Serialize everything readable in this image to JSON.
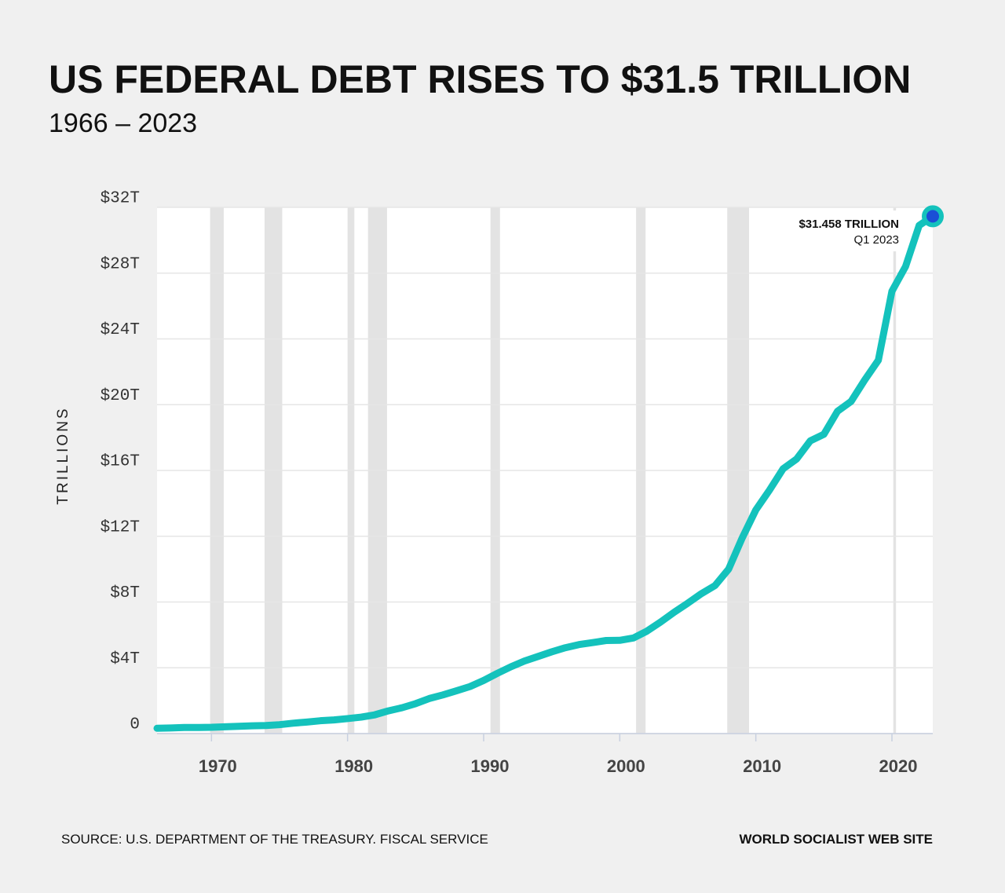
{
  "chart_data": {
    "type": "line",
    "title": "US FEDERAL DEBT RISES TO $31.5 TRILLION",
    "subtitle": "1966 – 2023",
    "y_label": "TRILLIONS",
    "source": "SOURCE: U.S. DEPARTMENT OF THE TREASURY. FISCAL SERVICE",
    "brand": "WORLD SOCIALIST WEB SITE",
    "annotation": {
      "label": "$31.458 TRILLION",
      "period": "Q1 2023"
    },
    "x": [
      1966,
      1967,
      1968,
      1969,
      1970,
      1971,
      1972,
      1973,
      1974,
      1975,
      1976,
      1977,
      1978,
      1979,
      1980,
      1981,
      1982,
      1983,
      1984,
      1985,
      1986,
      1987,
      1988,
      1989,
      1990,
      1991,
      1992,
      1993,
      1994,
      1995,
      1996,
      1997,
      1998,
      1999,
      2000,
      2001,
      2002,
      2003,
      2004,
      2005,
      2006,
      2007,
      2008,
      2009,
      2010,
      2011,
      2012,
      2013,
      2014,
      2015,
      2016,
      2017,
      2018,
      2019,
      2020,
      2021,
      2022,
      2023
    ],
    "values": [
      0.32,
      0.34,
      0.37,
      0.37,
      0.38,
      0.41,
      0.44,
      0.47,
      0.49,
      0.54,
      0.63,
      0.7,
      0.78,
      0.83,
      0.91,
      1.0,
      1.14,
      1.38,
      1.57,
      1.82,
      2.13,
      2.35,
      2.6,
      2.86,
      3.23,
      3.66,
      4.06,
      4.41,
      4.69,
      4.97,
      5.22,
      5.41,
      5.53,
      5.66,
      5.67,
      5.81,
      6.23,
      6.78,
      7.38,
      7.93,
      8.51,
      9.0,
      10.0,
      11.9,
      13.6,
      14.8,
      16.1,
      16.7,
      17.8,
      18.2,
      19.6,
      20.2,
      21.5,
      22.7,
      26.9,
      28.4,
      30.9,
      31.458
    ],
    "color": "#14c2bc",
    "marker_color": "#1a4fd6",
    "recessions": [
      [
        1969.9,
        1970.9
      ],
      [
        1973.9,
        1975.2
      ],
      [
        1980.0,
        1980.5
      ],
      [
        1981.5,
        1982.9
      ],
      [
        1990.5,
        1991.2
      ],
      [
        2001.2,
        2001.9
      ],
      [
        2007.9,
        2009.5
      ],
      [
        2020.1,
        2020.3
      ]
    ],
    "recession_color": "#e3e3e3",
    "xlim": [
      1966,
      2023
    ],
    "xticks": [
      1970,
      1980,
      1990,
      2000,
      2010,
      2020
    ],
    "ylim": [
      0,
      32
    ],
    "yticks": [
      0,
      {
        "value": 4,
        "label": "$4T"
      },
      {
        "value": 8,
        "label": "$8T"
      },
      {
        "value": 12,
        "label": "$12T"
      },
      {
        "value": 16,
        "label": "$16T"
      },
      {
        "value": 20,
        "label": "$20T"
      },
      {
        "value": 24,
        "label": "$24T"
      },
      {
        "value": 28,
        "label": "$28T"
      },
      {
        "value": 32,
        "label": "$32T"
      }
    ],
    "grid": true
  }
}
